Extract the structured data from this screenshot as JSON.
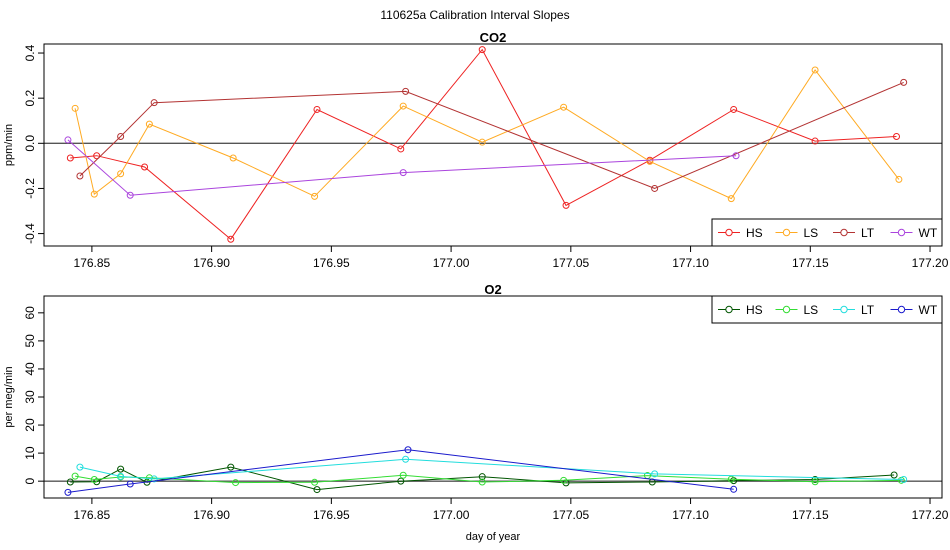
{
  "figure_title": "110625a   Calibration Interval Slopes",
  "chart_data": [
    {
      "type": "line",
      "title": "CO2",
      "xlabel": "",
      "ylabel": "ppm/min",
      "xlim": [
        176.83,
        177.205
      ],
      "ylim": [
        -0.455,
        0.44
      ],
      "xticks": [
        176.85,
        176.9,
        176.95,
        177.0,
        177.05,
        177.1,
        177.15,
        177.2
      ],
      "xtick_labels": [
        "176.85",
        "176.90",
        "176.95",
        "177.00",
        "177.05",
        "177.10",
        "177.15",
        "177.20"
      ],
      "yticks": [
        -0.4,
        -0.2,
        0.0,
        0.2,
        0.4
      ],
      "ytick_labels": [
        "-0.4",
        "-0.2",
        "0.0",
        "0.2",
        "0.4"
      ],
      "hline": 0,
      "legend_position": "bottom-right",
      "series": [
        {
          "name": "HS",
          "color": "#ee2222",
          "x": [
            176.841,
            176.852,
            176.872,
            176.908,
            176.944,
            176.979,
            177.013,
            177.048,
            177.083,
            177.118,
            177.152,
            177.186
          ],
          "y": [
            -0.065,
            -0.055,
            -0.105,
            -0.425,
            0.15,
            -0.025,
            0.415,
            -0.275,
            -0.075,
            0.15,
            0.01,
            0.03
          ]
        },
        {
          "name": "LS",
          "color": "#ffaa22",
          "x": [
            176.843,
            176.851,
            176.862,
            176.874,
            176.909,
            176.943,
            176.98,
            177.013,
            177.047,
            177.083,
            177.117,
            177.152,
            177.187
          ],
          "y": [
            0.155,
            -0.225,
            -0.135,
            0.085,
            -0.065,
            -0.235,
            0.165,
            0.005,
            0.16,
            -0.08,
            -0.245,
            0.325,
            -0.16
          ]
        },
        {
          "name": "LT",
          "color": "#b33333",
          "x": [
            176.845,
            176.862,
            176.876,
            176.981,
            177.085,
            177.189
          ],
          "y": [
            -0.145,
            0.03,
            0.18,
            0.23,
            -0.2,
            0.27
          ]
        },
        {
          "name": "WT",
          "color": "#aa44dd",
          "x": [
            176.84,
            176.866,
            176.98,
            177.119
          ],
          "y": [
            0.015,
            -0.23,
            -0.13,
            -0.055
          ]
        }
      ]
    },
    {
      "type": "line",
      "title": "O2",
      "xlabel": "day of year",
      "ylabel": "per meg/min",
      "xlim": [
        176.83,
        177.205
      ],
      "ylim": [
        -6,
        66
      ],
      "xticks": [
        176.85,
        176.9,
        176.95,
        177.0,
        177.05,
        177.1,
        177.15,
        177.2
      ],
      "xtick_labels": [
        "176.85",
        "176.90",
        "176.95",
        "177.00",
        "177.05",
        "177.10",
        "177.15",
        "177.20"
      ],
      "yticks": [
        0,
        10,
        20,
        30,
        40,
        50,
        60
      ],
      "ytick_labels": [
        "0",
        "10",
        "20",
        "30",
        "40",
        "50",
        "60"
      ],
      "hline": 0,
      "legend_position": "top-right",
      "series": [
        {
          "name": "HS",
          "color": "#005500",
          "x": [
            176.841,
            176.852,
            176.862,
            176.873,
            176.908,
            176.944,
            176.979,
            177.013,
            177.048,
            177.084,
            177.118,
            177.152,
            177.185
          ],
          "y": [
            -0.3,
            -0.2,
            4.3,
            -0.4,
            5.0,
            -3.0,
            0.0,
            1.6,
            -0.6,
            -0.3,
            0.2,
            0.6,
            2.2
          ]
        },
        {
          "name": "LS",
          "color": "#33dd33",
          "x": [
            176.843,
            176.851,
            176.862,
            176.874,
            176.91,
            176.943,
            176.98,
            177.013,
            177.047,
            177.082,
            177.117,
            177.152,
            177.188
          ],
          "y": [
            1.8,
            0.6,
            1.5,
            1.2,
            -0.5,
            -0.4,
            2.1,
            -0.3,
            0.3,
            2.0,
            0.7,
            -0.2,
            0.3
          ]
        },
        {
          "name": "LT",
          "color": "#22dddd",
          "x": [
            176.845,
            176.862,
            176.876,
            176.981,
            177.085,
            177.189
          ],
          "y": [
            5.0,
            1.7,
            0.8,
            7.8,
            2.6,
            0.6
          ]
        },
        {
          "name": "WT",
          "color": "#1a1acc",
          "x": [
            176.84,
            176.866,
            176.982,
            177.118
          ],
          "y": [
            -4.0,
            -1.0,
            11.2,
            -2.9
          ]
        }
      ]
    }
  ]
}
